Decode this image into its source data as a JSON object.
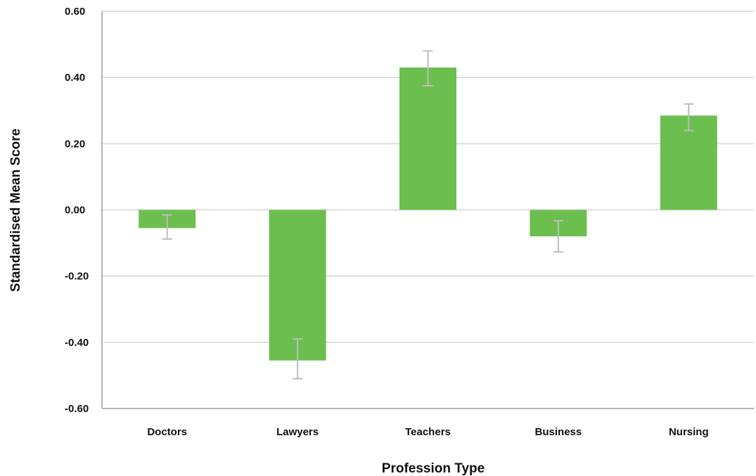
{
  "chart_data": {
    "type": "bar",
    "title": "",
    "xlabel": "Profession Type",
    "ylabel": "Standardised Mean Score",
    "ylim": [
      -0.6,
      0.6
    ],
    "yticks": [
      0.6,
      0.4,
      0.2,
      0.0,
      -0.2,
      -0.4,
      -0.6
    ],
    "ytick_labels": [
      "0.60",
      "0.40",
      "0.20",
      "0.00",
      "-0.20",
      "-0.40",
      "-0.60"
    ],
    "grid": true,
    "categories": [
      "Doctors",
      "Lawyers",
      "Teachers",
      "Business",
      "Nursing"
    ],
    "values": [
      -0.055,
      -0.455,
      0.43,
      -0.08,
      0.285
    ],
    "error_low": [
      -0.088,
      -0.51,
      0.375,
      -0.127,
      0.24
    ],
    "error_high": [
      -0.015,
      -0.39,
      0.48,
      -0.033,
      0.32
    ],
    "colors": {
      "bar": "#6cbf4f",
      "error_bar": "#bdbdbd",
      "grid": "#dedede",
      "axis": "#b5b5b5"
    }
  }
}
